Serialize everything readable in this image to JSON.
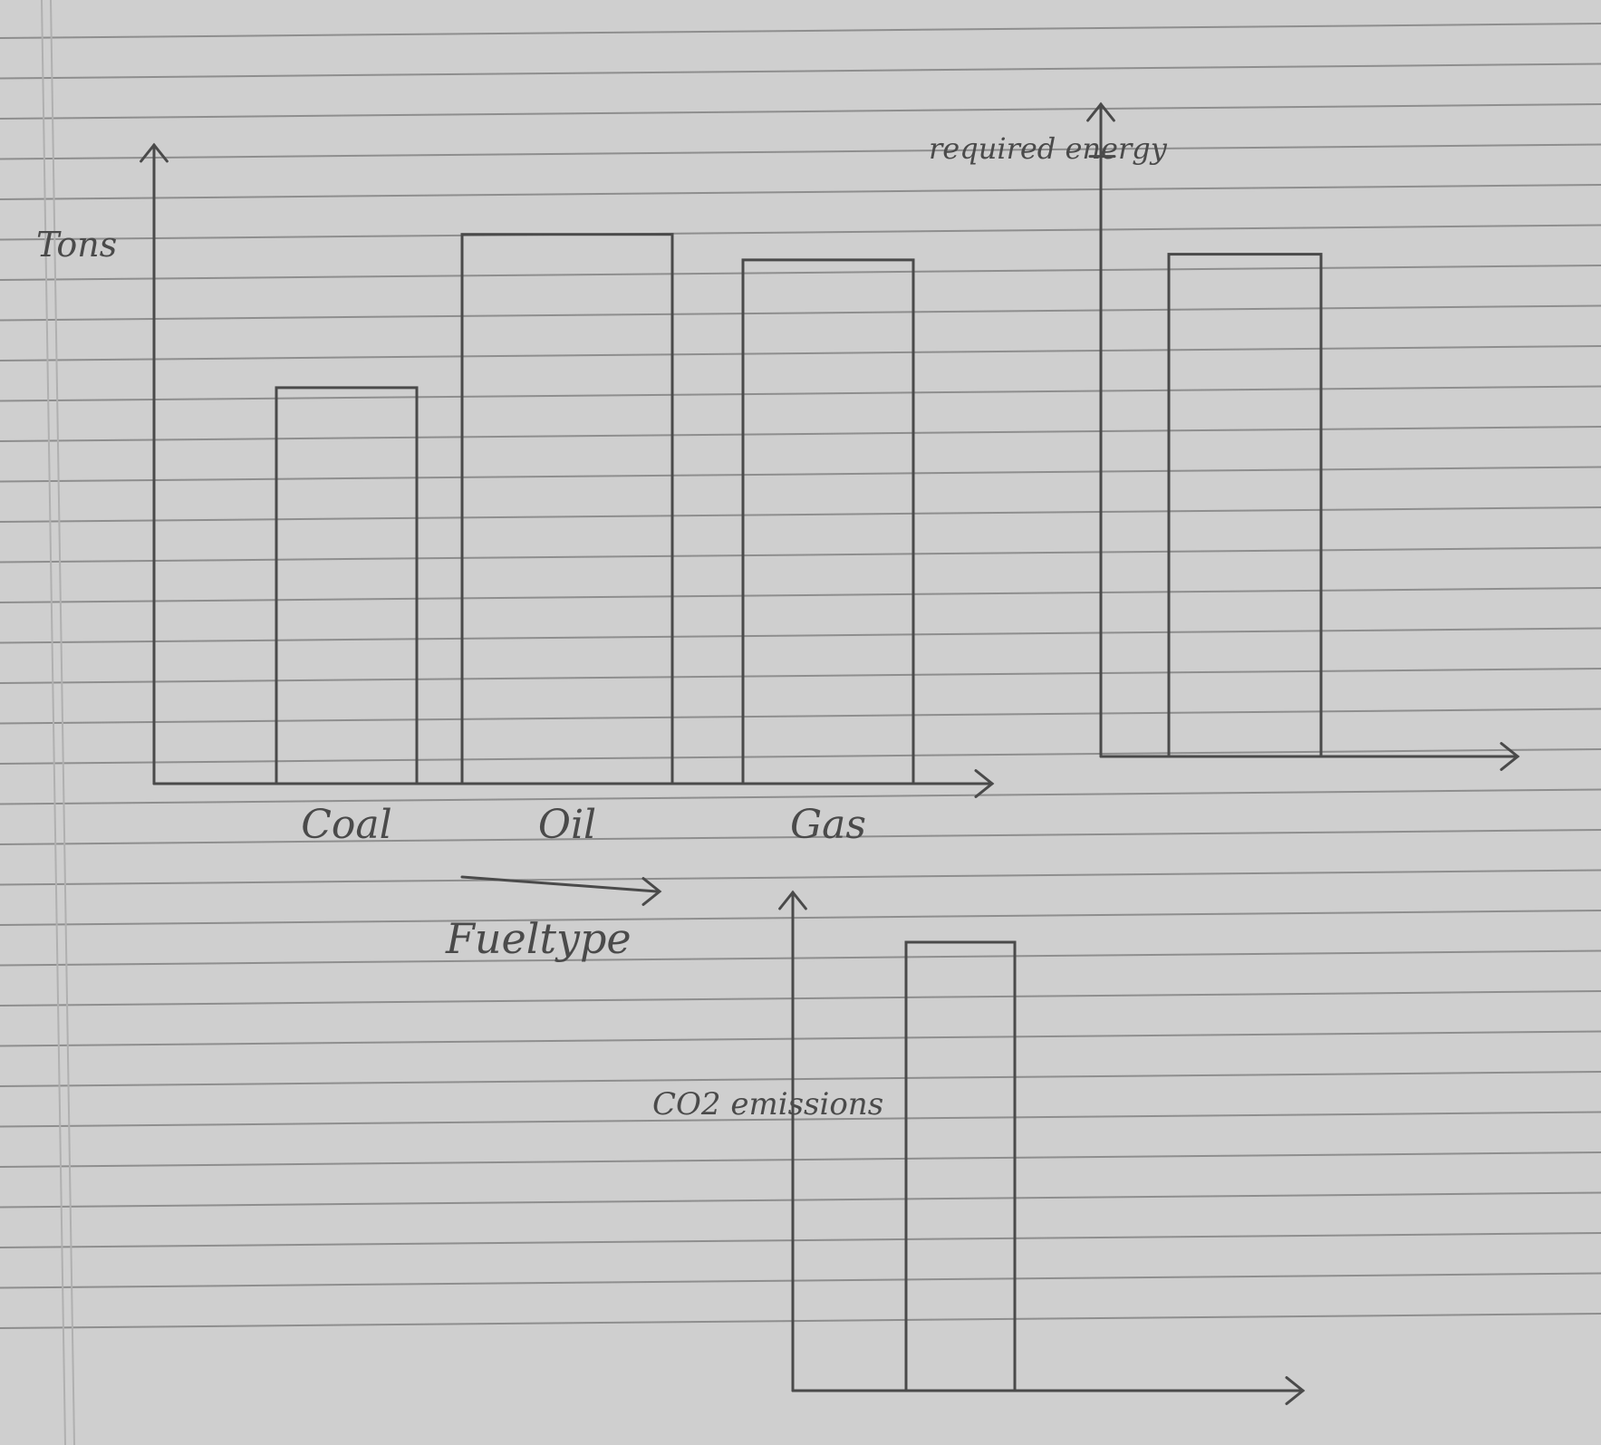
{
  "paper": {
    "background": "#cfcfcf",
    "ruling_color": "#8e8e8e",
    "ink_color": "#4a4a4a",
    "margin_line_color": "#b0b0b0"
  },
  "chart_data": [
    {
      "type": "bar",
      "title": "",
      "ylabel": "Tons",
      "xlabel": "Fueltype",
      "categories": [
        "Coal",
        "Oil",
        "Gas"
      ],
      "values": [
        62,
        86,
        82
      ],
      "ylim": [
        0,
        100
      ],
      "grid": false,
      "legend": "none",
      "y_ticks": "none"
    },
    {
      "type": "bar",
      "title": "",
      "ylabel": "required energy",
      "xlabel": "",
      "categories": [
        ""
      ],
      "values": [
        77
      ],
      "ylim": [
        0,
        100
      ],
      "reference_tick": {
        "label": "required energy",
        "value": 92
      },
      "grid": false,
      "legend": "none"
    },
    {
      "type": "bar",
      "title": "",
      "ylabel": "CO2 emissions",
      "xlabel": "",
      "categories": [
        ""
      ],
      "values": [
        90
      ],
      "ylim": [
        0,
        100
      ],
      "grid": false,
      "legend": "none"
    }
  ]
}
